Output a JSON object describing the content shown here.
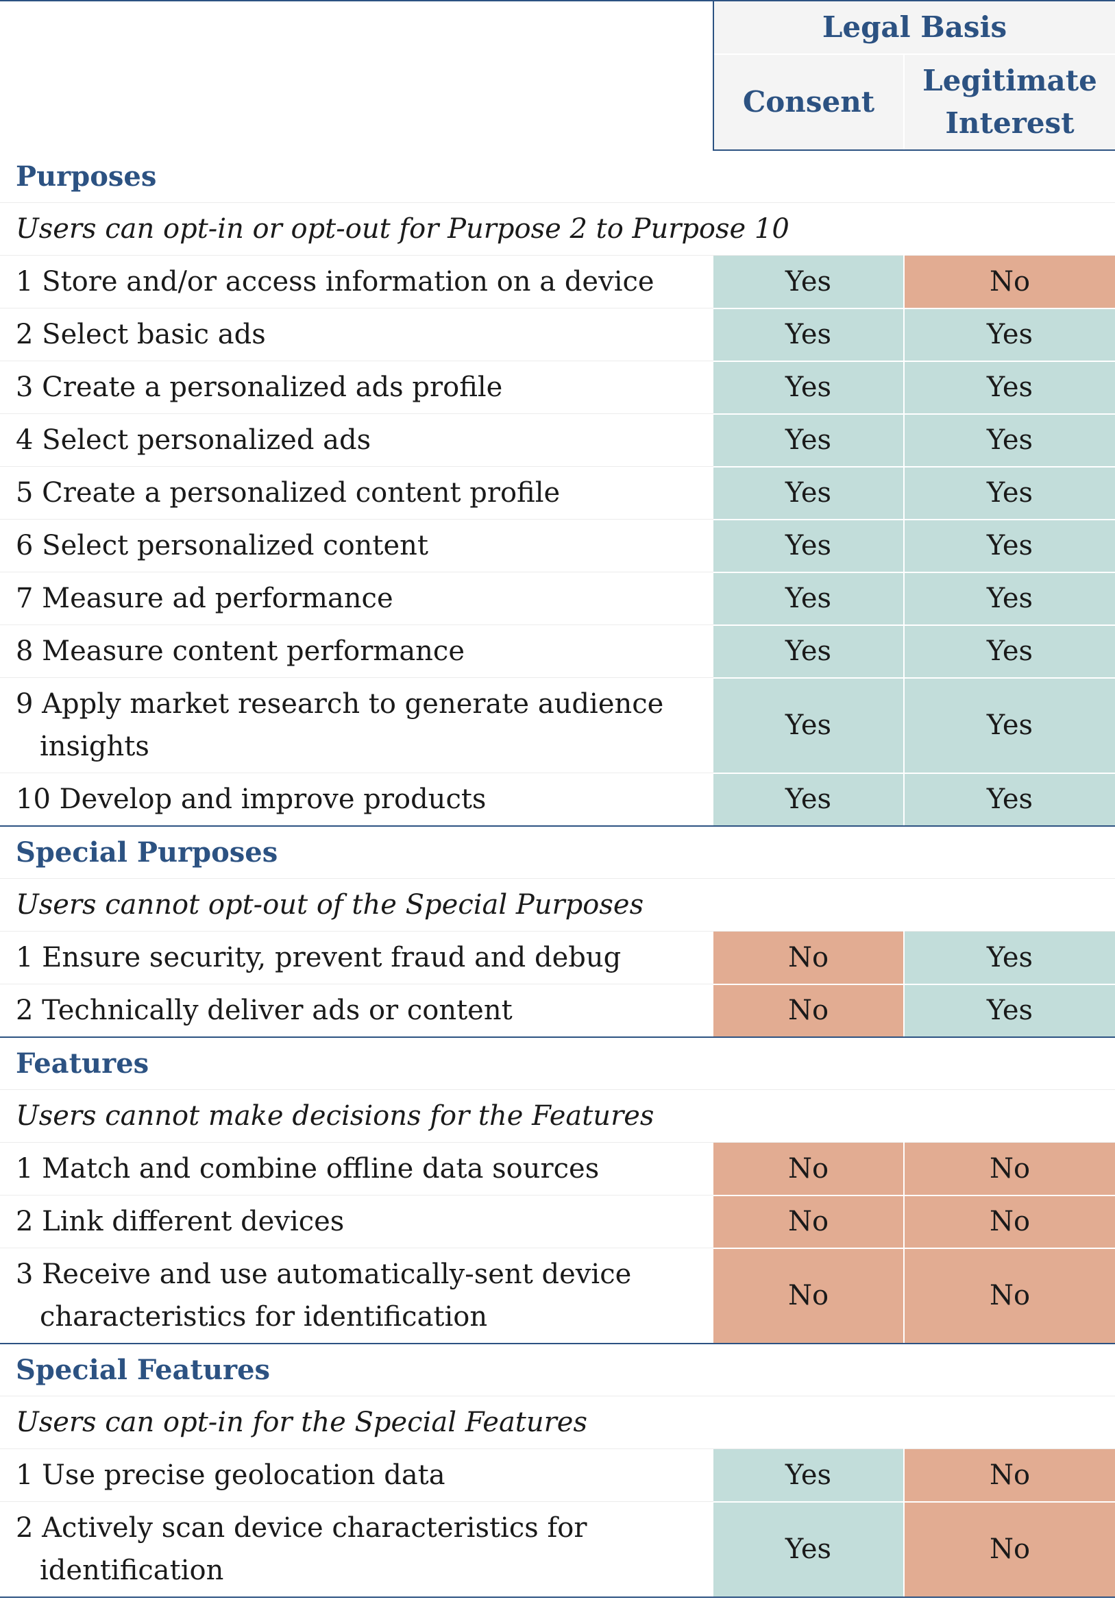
{
  "header": {
    "group_label": "Legal Basis",
    "col_consent": "Consent",
    "col_legitimate_line1": "Legitimate",
    "col_legitimate_line2": "Interest"
  },
  "colors": {
    "yes_bg": "#c2ddda",
    "no_bg": "#e2ac92",
    "accent": "#2c5282"
  },
  "purposes": {
    "title": "Purposes",
    "note": "Users can opt-in or opt-out for Purpose 2 to Purpose 10",
    "rows": [
      {
        "line1": "1 Store and/or access information on a device",
        "consent": "Yes",
        "legit": "No"
      },
      {
        "line1": "2 Select basic ads",
        "consent": "Yes",
        "legit": "Yes"
      },
      {
        "line1": "3 Create a personalized ads profile",
        "consent": "Yes",
        "legit": "Yes"
      },
      {
        "line1": "4 Select personalized ads",
        "consent": "Yes",
        "legit": "Yes"
      },
      {
        "line1": "5 Create a personalized content profile",
        "consent": "Yes",
        "legit": "Yes"
      },
      {
        "line1": "6 Select personalized content",
        "consent": "Yes",
        "legit": "Yes"
      },
      {
        "line1": "7 Measure ad performance",
        "consent": "Yes",
        "legit": "Yes"
      },
      {
        "line1": "8 Measure content performance",
        "consent": "Yes",
        "legit": "Yes"
      },
      {
        "line1": "9 Apply market research to generate audience",
        "line2": "insights",
        "consent": "Yes",
        "legit": "Yes"
      },
      {
        "line1": "10 Develop and improve products",
        "consent": "Yes",
        "legit": "Yes"
      }
    ]
  },
  "special_purposes": {
    "title": "Special Purposes",
    "note": "Users cannot opt-out of the Special Purposes",
    "rows": [
      {
        "line1": "1 Ensure security, prevent fraud and debug",
        "consent": "No",
        "legit": "Yes"
      },
      {
        "line1": "2 Technically deliver ads or content",
        "consent": "No",
        "legit": "Yes"
      }
    ]
  },
  "features": {
    "title": "Features",
    "note": "Users cannot make decisions for the Features",
    "rows": [
      {
        "line1": "1 Match and combine offline data sources",
        "consent": "No",
        "legit": "No"
      },
      {
        "line1": "2 Link different devices",
        "consent": "No",
        "legit": "No"
      },
      {
        "line1": "3 Receive and use automatically-sent device",
        "line2": "characteristics for identification",
        "consent": "No",
        "legit": "No"
      }
    ]
  },
  "special_features": {
    "title": "Special Features",
    "note": "Users can opt-in for the Special Features",
    "rows": [
      {
        "line1": "1 Use precise geolocation data",
        "consent": "Yes",
        "legit": "No"
      },
      {
        "line1": "2 Actively scan device characteristics for",
        "line2": "identification",
        "consent": "Yes",
        "legit": "No"
      }
    ]
  }
}
